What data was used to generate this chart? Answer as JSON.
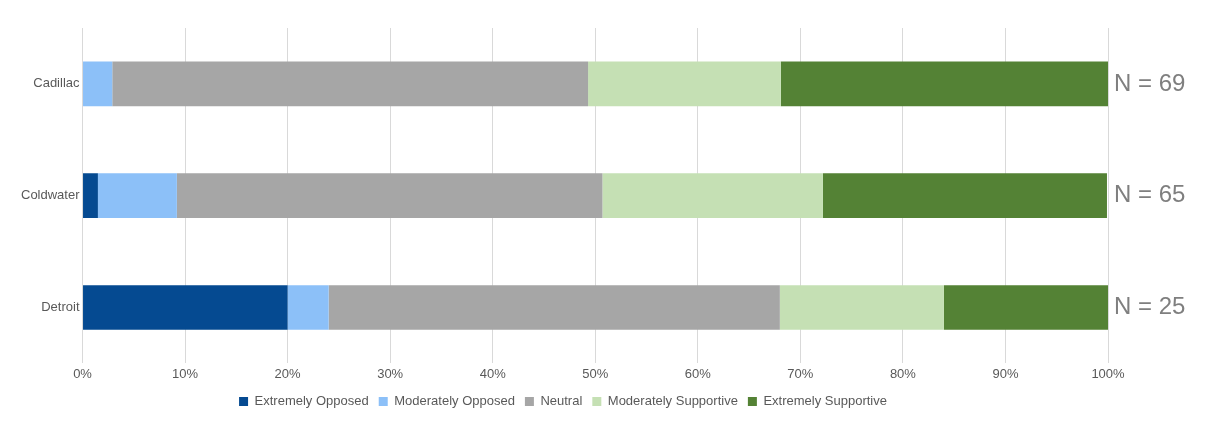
{
  "chart_data": {
    "type": "bar",
    "orientation": "horizontal",
    "stacked": true,
    "categories": [
      "Cadillac",
      "Coldwater",
      "Detroit"
    ],
    "series": [
      {
        "name": "Extremely Opposed",
        "color": "#054a91",
        "values": [
          0,
          1.5,
          20
        ]
      },
      {
        "name": "Moderately Opposed",
        "color": "#8cc0f8",
        "values": [
          2.9,
          7.7,
          4
        ]
      },
      {
        "name": "Neutral",
        "color": "#a6a6a6",
        "values": [
          46.4,
          41.5,
          44
        ]
      },
      {
        "name": "Moderately Supportive",
        "color": "#c5e0b4",
        "values": [
          18.8,
          21.5,
          16
        ]
      },
      {
        "name": "Extremely Supportive",
        "color": "#548235",
        "values": [
          31.9,
          27.7,
          16
        ]
      }
    ],
    "xlim": [
      0,
      100
    ],
    "xticks": [
      {
        "value": 0,
        "label": "0%"
      },
      {
        "value": 10,
        "label": "10%"
      },
      {
        "value": 20,
        "label": "20%"
      },
      {
        "value": 30,
        "label": "30%"
      },
      {
        "value": 40,
        "label": "40%"
      },
      {
        "value": 50,
        "label": "50%"
      },
      {
        "value": 60,
        "label": "60%"
      },
      {
        "value": 70,
        "label": "70%"
      },
      {
        "value": 80,
        "label": "80%"
      },
      {
        "value": 90,
        "label": "90%"
      },
      {
        "value": 100,
        "label": "100%"
      }
    ],
    "grid": "x",
    "legend": "bottom",
    "annotations": [
      "N = 69",
      "N = 65",
      "N = 25"
    ]
  }
}
